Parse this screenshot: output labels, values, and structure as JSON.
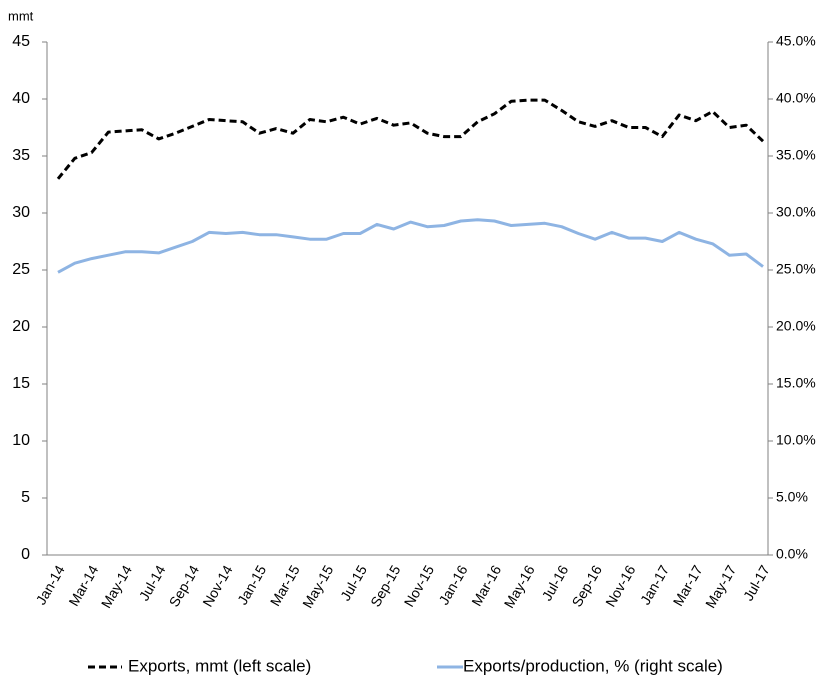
{
  "chart_data": {
    "type": "line",
    "ylabel": "mmt",
    "categories": [
      "Jan-14",
      null,
      "Mar-14",
      null,
      "May-14",
      null,
      "Jul-14",
      null,
      "Sep-14",
      null,
      "Nov-14",
      null,
      "Jan-15",
      null,
      "Mar-15",
      null,
      "May-15",
      null,
      "Jul-15",
      null,
      "Sep-15",
      null,
      "Nov-15",
      null,
      "Jan-16",
      null,
      "Mar-16",
      null,
      "May-16",
      null,
      "Jul-16",
      null,
      "Sep-16",
      null,
      "Nov-16",
      null,
      "Jan-17",
      null,
      "Mar-17",
      null,
      "May-17",
      null,
      "Jul-17"
    ],
    "series": [
      {
        "name": "Exports, mmt (left scale)",
        "color": "#000000",
        "style": "dashed",
        "values": [
          33.0,
          34.8,
          35.3,
          37.1,
          37.2,
          37.3,
          36.5,
          37.0,
          37.6,
          38.2,
          38.1,
          38.0,
          37.0,
          37.4,
          37.0,
          38.2,
          38.0,
          38.4,
          37.8,
          38.3,
          37.7,
          37.9,
          37.0,
          36.7,
          36.7,
          38.0,
          38.7,
          39.8,
          39.9,
          39.9,
          39.0,
          38.0,
          37.6,
          38.1,
          37.5,
          37.5,
          36.7,
          38.6,
          38.1,
          38.9,
          37.5,
          37.7,
          36.3
        ]
      },
      {
        "name": "Exports/production, % (right scale)",
        "color": "#8eb4e3",
        "style": "solid",
        "axis": "y2",
        "values": [
          24.8,
          25.6,
          26.0,
          26.3,
          26.6,
          26.6,
          26.5,
          27.0,
          27.5,
          28.3,
          28.2,
          28.3,
          28.1,
          28.1,
          27.9,
          27.7,
          27.7,
          28.2,
          28.2,
          29.0,
          28.6,
          29.2,
          28.8,
          28.9,
          29.3,
          29.4,
          29.3,
          28.9,
          29.0,
          29.1,
          28.8,
          28.2,
          27.7,
          28.3,
          27.8,
          27.8,
          27.5,
          28.3,
          27.7,
          27.3,
          26.3,
          26.4,
          25.3
        ]
      }
    ],
    "ylim": [
      0,
      45
    ],
    "yticks": [
      0,
      5,
      10,
      15,
      20,
      25,
      30,
      35,
      40,
      45
    ],
    "y2lim": [
      0,
      45
    ],
    "y2ticks": [
      {
        "value": 0,
        "label": "0.0%"
      },
      {
        "value": 5,
        "label": "5.0%"
      },
      {
        "value": 10,
        "label": "10.0%"
      },
      {
        "value": 15,
        "label": "15.0%"
      },
      {
        "value": 20,
        "label": "20.0%"
      },
      {
        "value": 25,
        "label": "25.0%"
      },
      {
        "value": 30,
        "label": "30.0%"
      },
      {
        "value": 35,
        "label": "35.0%"
      },
      {
        "value": 40,
        "label": "40.0%"
      },
      {
        "value": 45,
        "label": "45.0%"
      }
    ],
    "grid": false,
    "legend": "bottom"
  }
}
